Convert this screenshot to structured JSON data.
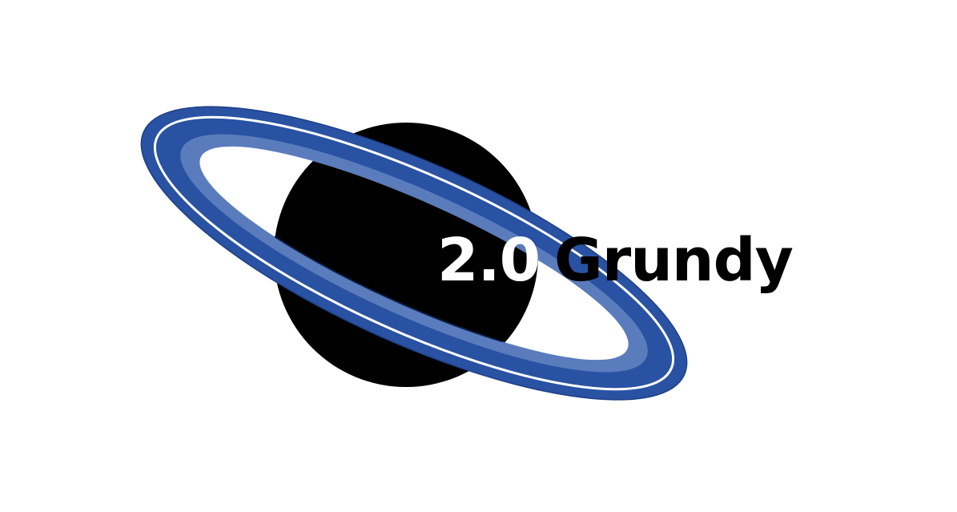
{
  "logo": {
    "version": "2.0",
    "name": "Grundy"
  },
  "icon": "ringed-planet-icon",
  "colors": {
    "background": "#ffffff",
    "planet": "#000000",
    "ring_outer": "#2952a3",
    "ring_middle": "#5a7cbd",
    "ring_inner_highlight": "#ffffff",
    "version_text": "#ffffff",
    "name_text": "#000000"
  }
}
